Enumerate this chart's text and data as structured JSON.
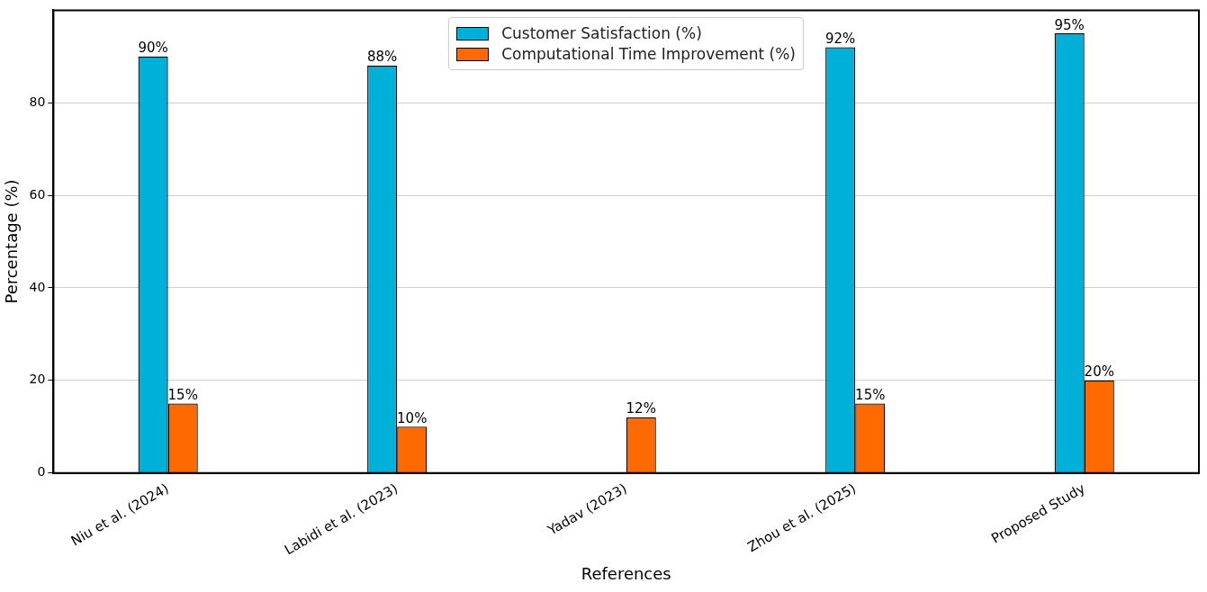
{
  "chart_data": {
    "type": "bar",
    "xlabel": "References",
    "ylabel": "Percentage (%)",
    "categories": [
      "Niu et al. (2024)",
      "Labidi et al. (2023)",
      "Yadav (2023)",
      "Zhou et al. (2025)",
      "Proposed Study"
    ],
    "series": [
      {
        "name": "Customer Satisfaction (%)",
        "color": "#00b0d8",
        "values": [
          90,
          88,
          null,
          92,
          95
        ],
        "value_labels": [
          "90%",
          "88%",
          null,
          "92%",
          "95%"
        ]
      },
      {
        "name": "Computational Time Improvement (%)",
        "color": "#ff6a00",
        "values": [
          15,
          10,
          12,
          15,
          20
        ],
        "value_labels": [
          "15%",
          "10%",
          "12%",
          "15%",
          "20%"
        ]
      }
    ],
    "ylim": [
      0,
      100
    ],
    "yticks": [
      0,
      20,
      40,
      60,
      80
    ],
    "grid": "y",
    "legend": "top"
  }
}
